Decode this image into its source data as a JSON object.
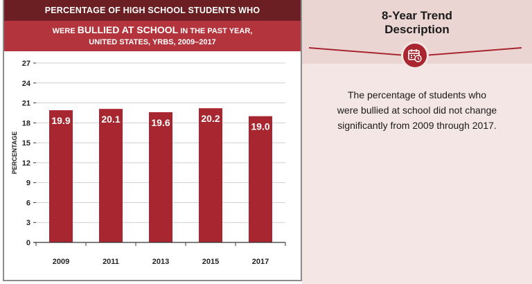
{
  "header": {
    "line1": "PERCENTAGE OF HIGH SCHOOL STUDENTS WHO",
    "line2_pre": "WERE ",
    "line2_emph": "BULLIED AT SCHOOL",
    "line2_post": " IN THE PAST YEAR,",
    "line3": "UNITED STATES, YRBS, 2009–2017"
  },
  "colors": {
    "bar": "#a8262f",
    "header_dark": "#6b1f22",
    "header_main": "#b3343c"
  },
  "chart_data": {
    "type": "bar",
    "categories": [
      "2009",
      "2011",
      "2013",
      "2015",
      "2017"
    ],
    "values": [
      19.9,
      20.1,
      19.6,
      20.2,
      19.0
    ],
    "value_labels": [
      "19.9",
      "20.1",
      "19.6",
      "20.2",
      "19.0"
    ],
    "ylabel": "PERCENTAGE",
    "ylim": [
      0,
      27
    ],
    "yticks": [
      0,
      3,
      6,
      9,
      12,
      15,
      18,
      21,
      24,
      27
    ],
    "grid": true,
    "legend": "none"
  },
  "trend": {
    "title_line1": "8-Year Trend",
    "title_line2": "Description",
    "icon": "calendar-clock-icon",
    "description_lines": [
      "The percentage of students who",
      "were bullied at school did not change",
      "significantly from 2009 through 2017."
    ]
  }
}
